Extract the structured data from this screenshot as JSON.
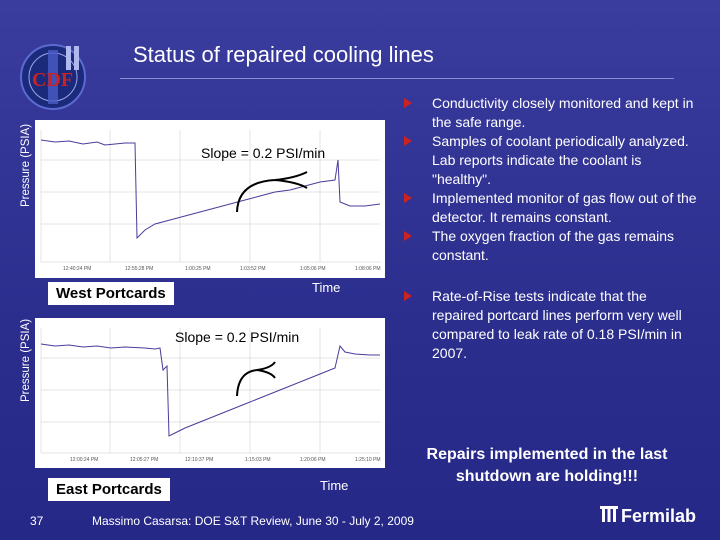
{
  "logo": {
    "text": "CDF",
    "numeral": "II",
    "icon": "cdf-logo-icon"
  },
  "title": "Status of repaired cooling lines",
  "plot_top": {
    "ylabel": "Pressure (PSIA)",
    "annotation": "Slope = 0.2 PSI/min",
    "region_label": "West Portcards",
    "xlabel": "Time"
  },
  "plot_bottom": {
    "ylabel": "Pressure (PSIA)",
    "annotation": "Slope = 0.2 PSI/min",
    "region_label": "East Portcards",
    "xlabel": "Time"
  },
  "bullets": [
    "Conductivity closely monitored and kept in the safe range.",
    "Samples of coolant periodically analyzed. Lab reports indicate the coolant is \"healthy\".",
    "Implemented monitor of gas flow out of the detector. It remains constant.",
    "The oxygen fraction of the gas remains constant.",
    "Rate-of-Rise tests indicate that the repaired portcard lines perform very well compared to leak rate of 0.18 PSI/min in 2007."
  ],
  "conclusion": "Repairs implemented in the last shutdown are holding!!!",
  "footer": {
    "page_number": "37",
    "text": "Massimo Casarsa: DOE S&T Review, June 30 - July 2, 2009",
    "brand": "Fermilab",
    "brand_icon": "fermilab-logo-icon"
  },
  "colors": {
    "background": "#2e3192",
    "bullet_marker": "#cc2222",
    "trace": "#4a3c9a"
  }
}
